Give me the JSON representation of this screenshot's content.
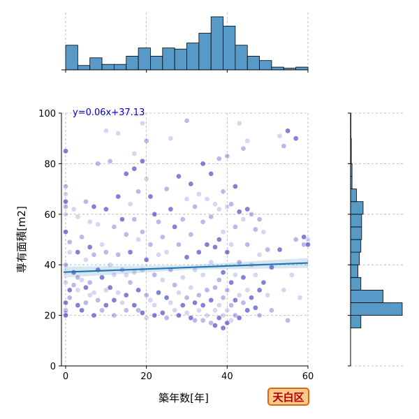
{
  "chart_data": {
    "type": "scatter",
    "title": "",
    "xlabel": "築年数[年]",
    "ylabel": "専有面積[m2]",
    "xlim": [
      -1,
      60
    ],
    "ylim": [
      0,
      100
    ],
    "xticks": [
      0,
      20,
      40,
      60
    ],
    "yticks": [
      0,
      20,
      40,
      60,
      80,
      100
    ],
    "grid": true,
    "regression": {
      "label": "y=0.06x+37.13",
      "slope": 0.06,
      "intercept": 37.13
    },
    "point_color": "#1a1ab8",
    "line_color": "#1f77b4",
    "hist_color": "#5799c7",
    "x_hist": {
      "bin_edges": [
        0,
        3,
        6,
        9,
        12,
        15,
        18,
        21,
        24,
        27,
        30,
        33,
        36,
        39,
        42,
        45,
        48,
        51,
        54,
        57,
        60
      ],
      "counts": [
        45,
        8,
        22,
        10,
        10,
        25,
        40,
        25,
        40,
        38,
        49,
        67,
        97,
        80,
        45,
        25,
        17,
        5,
        3,
        5
      ]
    },
    "y_hist": {
      "bin_edges": [
        15,
        20,
        25,
        30,
        35,
        40,
        45,
        50,
        55,
        60,
        65,
        70,
        75,
        80,
        85,
        90,
        95,
        100
      ],
      "counts": [
        14,
        70,
        44,
        14,
        10,
        12,
        14,
        15,
        15,
        17,
        8,
        2,
        2,
        1,
        1,
        0.5,
        0.5
      ]
    },
    "points": [
      [
        0,
        85
      ],
      [
        0,
        71
      ],
      [
        0,
        68
      ],
      [
        0,
        65
      ],
      [
        0,
        63
      ],
      [
        0,
        60
      ],
      [
        0,
        53
      ],
      [
        0,
        40
      ],
      [
        0,
        33
      ],
      [
        0,
        25
      ],
      [
        0,
        22
      ],
      [
        0,
        21
      ],
      [
        0,
        20
      ],
      [
        1,
        49
      ],
      [
        1,
        45
      ],
      [
        1,
        30
      ],
      [
        1,
        27
      ],
      [
        2,
        62
      ],
      [
        2,
        37
      ],
      [
        2,
        32
      ],
      [
        3,
        59
      ],
      [
        3,
        45
      ],
      [
        3,
        35
      ],
      [
        3,
        30
      ],
      [
        3,
        24
      ],
      [
        4,
        51
      ],
      [
        4,
        34
      ],
      [
        4,
        22
      ],
      [
        5,
        65
      ],
      [
        5,
        42
      ],
      [
        5,
        31
      ],
      [
        5,
        25
      ],
      [
        6,
        57
      ],
      [
        6,
        47
      ],
      [
        6,
        33
      ],
      [
        6,
        28
      ],
      [
        7,
        63
      ],
      [
        7,
        44
      ],
      [
        7,
        29
      ],
      [
        7,
        20
      ],
      [
        8,
        80
      ],
      [
        8,
        56
      ],
      [
        8,
        38
      ],
      [
        8,
        26
      ],
      [
        9,
        48
      ],
      [
        9,
        35
      ],
      [
        9,
        22
      ],
      [
        10,
        93
      ],
      [
        10,
        62
      ],
      [
        10,
        45
      ],
      [
        10,
        30
      ],
      [
        10,
        24
      ],
      [
        11,
        81
      ],
      [
        11,
        40
      ],
      [
        11,
        31
      ],
      [
        12,
        55
      ],
      [
        12,
        36
      ],
      [
        12,
        26
      ],
      [
        12,
        20
      ],
      [
        13,
        92
      ],
      [
        13,
        67
      ],
      [
        13,
        44
      ],
      [
        13,
        29
      ],
      [
        14,
        58
      ],
      [
        14,
        38
      ],
      [
        14,
        25
      ],
      [
        15,
        76
      ],
      [
        15,
        52
      ],
      [
        15,
        36
      ],
      [
        15,
        28
      ],
      [
        15,
        22
      ],
      [
        16,
        64
      ],
      [
        16,
        45
      ],
      [
        16,
        33
      ],
      [
        17,
        84
      ],
      [
        17,
        78
      ],
      [
        17,
        58
      ],
      [
        17,
        37
      ],
      [
        17,
        24
      ],
      [
        18,
        69
      ],
      [
        18,
        50
      ],
      [
        18,
        30
      ],
      [
        18,
        22
      ],
      [
        19,
        96
      ],
      [
        19,
        81
      ],
      [
        19,
        53
      ],
      [
        19,
        38
      ],
      [
        19,
        21
      ],
      [
        20,
        89
      ],
      [
        20,
        74
      ],
      [
        20,
        42
      ],
      [
        20,
        28
      ],
      [
        20,
        19
      ],
      [
        21,
        67
      ],
      [
        21,
        48
      ],
      [
        21,
        26
      ],
      [
        22,
        60
      ],
      [
        22,
        36
      ],
      [
        22,
        24
      ],
      [
        22,
        20
      ],
      [
        23,
        57
      ],
      [
        23,
        44
      ],
      [
        23,
        29
      ],
      [
        24,
        51
      ],
      [
        24,
        34
      ],
      [
        24,
        21
      ],
      [
        25,
        70
      ],
      [
        25,
        45
      ],
      [
        25,
        27
      ],
      [
        25,
        19
      ],
      [
        26,
        90
      ],
      [
        26,
        62
      ],
      [
        26,
        38
      ],
      [
        26,
        25
      ],
      [
        27,
        55
      ],
      [
        27,
        32
      ],
      [
        27,
        22
      ],
      [
        28,
        75
      ],
      [
        28,
        48
      ],
      [
        28,
        29
      ],
      [
        28,
        20
      ],
      [
        29,
        58
      ],
      [
        29,
        35
      ],
      [
        29,
        24
      ],
      [
        30,
        97
      ],
      [
        30,
        66
      ],
      [
        30,
        43
      ],
      [
        30,
        27
      ],
      [
        30,
        21
      ],
      [
        31,
        72
      ],
      [
        31,
        52
      ],
      [
        31,
        31
      ],
      [
        31,
        19
      ],
      [
        32,
        63
      ],
      [
        32,
        38
      ],
      [
        32,
        25
      ],
      [
        32,
        18
      ],
      [
        33,
        68
      ],
      [
        33,
        45
      ],
      [
        33,
        28
      ],
      [
        33,
        22
      ],
      [
        34,
        80
      ],
      [
        34,
        57
      ],
      [
        34,
        36
      ],
      [
        34,
        24
      ],
      [
        34,
        18
      ],
      [
        35,
        66
      ],
      [
        35,
        48
      ],
      [
        35,
        30
      ],
      [
        35,
        20
      ],
      [
        36,
        76
      ],
      [
        36,
        59
      ],
      [
        36,
        41
      ],
      [
        36,
        26
      ],
      [
        36,
        17
      ],
      [
        37,
        64
      ],
      [
        37,
        47
      ],
      [
        37,
        31
      ],
      [
        37,
        22
      ],
      [
        37,
        16
      ],
      [
        38,
        82
      ],
      [
        38,
        62
      ],
      [
        38,
        50
      ],
      [
        38,
        34
      ],
      [
        38,
        24
      ],
      [
        38,
        19
      ],
      [
        39,
        69
      ],
      [
        39,
        53
      ],
      [
        39,
        37
      ],
      [
        39,
        27
      ],
      [
        39,
        20
      ],
      [
        39,
        15
      ],
      [
        40,
        83
      ],
      [
        40,
        63
      ],
      [
        40,
        45
      ],
      [
        40,
        30
      ],
      [
        40,
        22
      ],
      [
        40,
        17
      ],
      [
        41,
        64
      ],
      [
        41,
        48
      ],
      [
        41,
        33
      ],
      [
        41,
        24
      ],
      [
        41,
        18
      ],
      [
        42,
        71
      ],
      [
        42,
        55
      ],
      [
        42,
        36
      ],
      [
        42,
        26
      ],
      [
        42,
        20
      ],
      [
        43,
        96
      ],
      [
        43,
        61
      ],
      [
        43,
        41
      ],
      [
        43,
        28
      ],
      [
        43,
        19
      ],
      [
        44,
        86
      ],
      [
        44,
        58
      ],
      [
        44,
        35
      ],
      [
        44,
        25
      ],
      [
        45,
        89
      ],
      [
        45,
        62
      ],
      [
        45,
        48
      ],
      [
        45,
        30
      ],
      [
        45,
        22
      ],
      [
        46,
        60
      ],
      [
        46,
        40
      ],
      [
        46,
        27
      ],
      [
        47,
        54
      ],
      [
        47,
        36
      ],
      [
        47,
        23
      ],
      [
        48,
        58
      ],
      [
        48,
        44
      ],
      [
        48,
        30
      ],
      [
        48,
        20
      ],
      [
        49,
        53
      ],
      [
        49,
        33
      ],
      [
        50,
        46
      ],
      [
        50,
        28
      ],
      [
        51,
        39
      ],
      [
        51,
        22
      ],
      [
        53,
        91
      ],
      [
        53,
        46
      ],
      [
        54,
        87
      ],
      [
        54,
        30
      ],
      [
        55,
        93
      ],
      [
        55,
        18
      ],
      [
        56,
        36
      ],
      [
        57,
        90
      ],
      [
        57,
        50
      ],
      [
        58,
        27
      ],
      [
        59,
        51
      ],
      [
        59,
        48
      ],
      [
        60,
        50
      ],
      [
        60,
        48
      ]
    ]
  },
  "badge": {
    "label": "天白区",
    "bg_color": "#ffc98e",
    "border_color": "#e8620c",
    "text_color": "#b00000"
  }
}
